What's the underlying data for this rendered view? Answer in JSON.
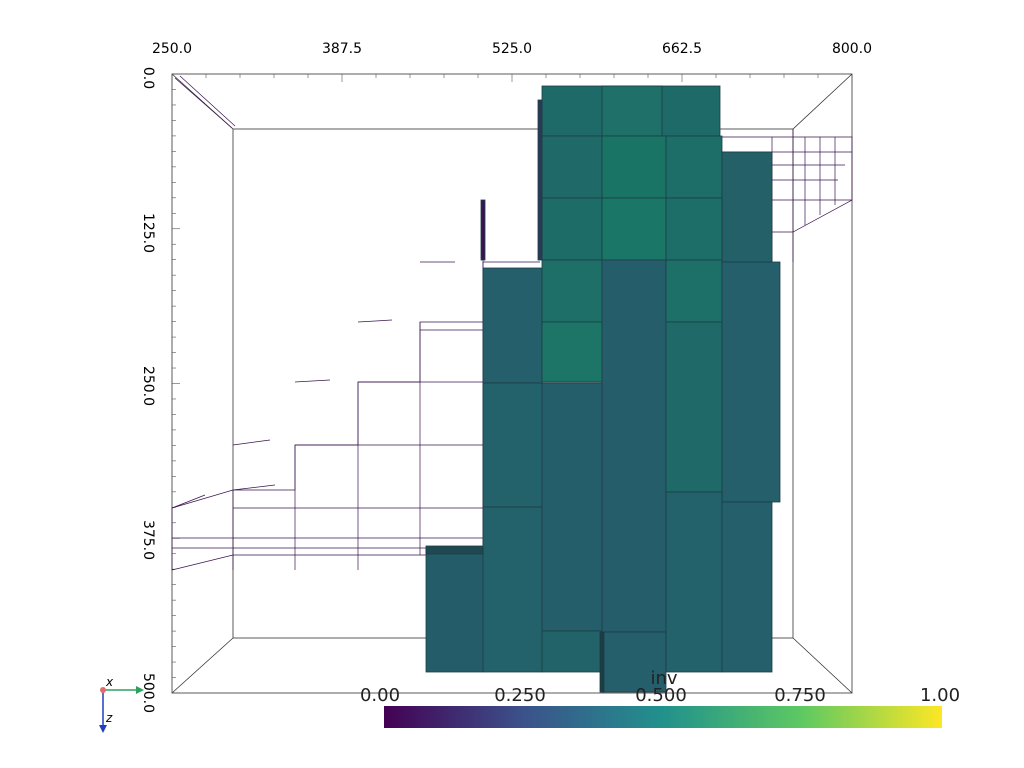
{
  "x_axis": {
    "tick_labels": [
      "250.0",
      "387.5",
      "525.0",
      "662.5",
      "800.0"
    ]
  },
  "y_axis": {
    "tick_labels": [
      "0.0",
      "125.0",
      "250.0",
      "375.0",
      "500.0"
    ]
  },
  "colorbar": {
    "title": "inv",
    "tick_labels": [
      "0.00",
      "0.250",
      "0.500",
      "0.750",
      "1.00"
    ],
    "range": [
      0,
      1
    ],
    "colormap": "viridis",
    "colors": [
      "#440154",
      "#3b528b",
      "#21918c",
      "#5ec962",
      "#fde725"
    ]
  },
  "orientation_axes": {
    "x_label": "x",
    "z_label": "z",
    "x_color": "#2ca25f",
    "z_color": "#1f3fbf",
    "origin_color": "#e06c6c"
  },
  "cell_colors": {
    "dark": "#245f6b",
    "mid": "#21646b",
    "bright": "#1e7167",
    "top": "#1d6e68"
  }
}
